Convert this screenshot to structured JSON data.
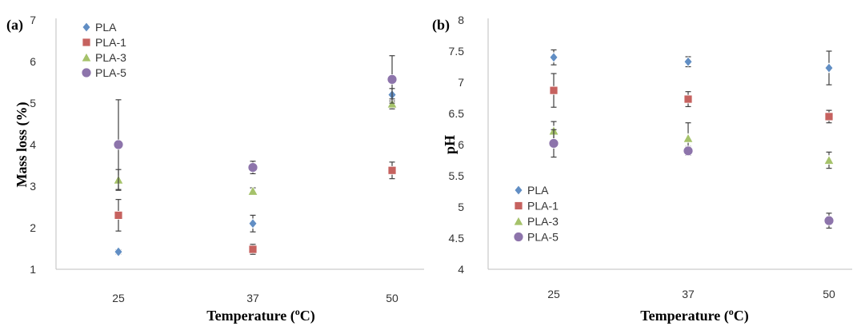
{
  "chart_data": [
    {
      "type": "scatter",
      "panel_label": "(a)",
      "xlabel_main": "Temperature (",
      "xlabel_sup": "o",
      "xlabel_tail": "C)",
      "ylabel": "Mass loss (%)",
      "categories": [
        "25",
        "37",
        "50"
      ],
      "ylim": [
        1,
        7
      ],
      "yticks": [
        "1",
        "2",
        "3",
        "4",
        "5",
        "6",
        "7"
      ],
      "legend_position": "top-left",
      "series": [
        {
          "name": "PLA",
          "marker": "diamond",
          "color": "#4f81bd",
          "values": [
            1.42,
            2.1,
            5.2
          ],
          "errors": [
            0.05,
            0.2,
            0.15
          ]
        },
        {
          "name": "PLA-1",
          "marker": "square",
          "color": "#c0504d",
          "values": [
            2.3,
            1.48,
            3.38
          ],
          "errors": [
            0.38,
            0.12,
            0.2
          ]
        },
        {
          "name": "PLA-3",
          "marker": "triangle",
          "color": "#9bbb59",
          "values": [
            3.15,
            2.88,
            4.98
          ],
          "errors": [
            0.25,
            0.08,
            0.12
          ]
        },
        {
          "name": "PLA-5",
          "marker": "circle",
          "color": "#8064a2",
          "values": [
            4.0,
            3.45,
            5.57
          ],
          "errors": [
            1.08,
            0.15,
            0.57
          ]
        }
      ]
    },
    {
      "type": "scatter",
      "panel_label": "(b)",
      "xlabel_main": "Temperature (",
      "xlabel_sup": "o",
      "xlabel_tail": "C)",
      "ylabel": "pH",
      "categories": [
        "25",
        "37",
        "50"
      ],
      "ylim": [
        4,
        8
      ],
      "yticks": [
        "4",
        "4.5",
        "5",
        "5.5",
        "6",
        "6.5",
        "7",
        "7.5",
        "8"
      ],
      "legend_position": "bottom-left",
      "series": [
        {
          "name": "PLA",
          "marker": "diamond",
          "color": "#4f81bd",
          "values": [
            7.4,
            7.33,
            7.23
          ],
          "errors": [
            0.12,
            0.08,
            0.27
          ]
        },
        {
          "name": "PLA-1",
          "marker": "square",
          "color": "#c0504d",
          "values": [
            6.87,
            6.73,
            6.45
          ],
          "errors": [
            0.27,
            0.12,
            0.1
          ]
        },
        {
          "name": "PLA-3",
          "marker": "triangle",
          "color": "#9bbb59",
          "values": [
            6.22,
            6.1,
            5.75
          ],
          "errors": [
            0.15,
            0.25,
            0.13
          ]
        },
        {
          "name": "PLA-5",
          "marker": "circle",
          "color": "#8064a2",
          "values": [
            6.02,
            5.9,
            4.78
          ],
          "errors": [
            0.22,
            0.07,
            0.12
          ]
        }
      ]
    }
  ]
}
